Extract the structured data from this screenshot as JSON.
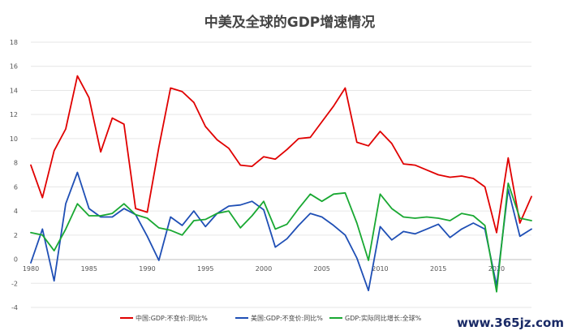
{
  "chart_data": {
    "type": "line",
    "title": "中美及全球的GDP增速情况",
    "xlabel": "",
    "ylabel": "",
    "ylim": [
      -4,
      18
    ],
    "y_ticks": [
      "-4",
      "-2",
      "0",
      "2",
      "4",
      "6",
      "8",
      "10",
      "12",
      "14",
      "16",
      "18"
    ],
    "x_ticks": [
      "1980",
      "1985",
      "1990",
      "1995",
      "2000",
      "2005",
      "2010",
      "2015",
      "2020"
    ],
    "grid": true,
    "legend_position": "bottom",
    "x": [
      1980,
      1981,
      1982,
      1983,
      1984,
      1985,
      1986,
      1987,
      1988,
      1989,
      1990,
      1991,
      1992,
      1993,
      1994,
      1995,
      1996,
      1997,
      1998,
      1999,
      2000,
      2001,
      2002,
      2003,
      2004,
      2005,
      2006,
      2007,
      2008,
      2009,
      2010,
      2011,
      2012,
      2013,
      2014,
      2015,
      2016,
      2017,
      2018,
      2019,
      2020,
      2021,
      2022,
      2023
    ],
    "series": [
      {
        "name": "中国:GDP:不变价:同比%",
        "color": "#e00000",
        "values": [
          7.8,
          5.1,
          9.0,
          10.8,
          15.2,
          13.4,
          8.9,
          11.7,
          11.2,
          4.2,
          3.9,
          9.3,
          14.2,
          13.9,
          13.0,
          11.0,
          9.9,
          9.2,
          7.8,
          7.7,
          8.5,
          8.3,
          9.1,
          10.0,
          10.1,
          11.4,
          12.7,
          14.2,
          9.7,
          9.4,
          10.6,
          9.6,
          7.9,
          7.8,
          7.4,
          7.0,
          6.8,
          6.9,
          6.7,
          6.0,
          2.2,
          8.4,
          3.0,
          5.2
        ]
      },
      {
        "name": "美国:GDP:不变价:同比%",
        "color": "#1f4fb5",
        "values": [
          -0.3,
          2.5,
          -1.8,
          4.6,
          7.2,
          4.2,
          3.5,
          3.5,
          4.2,
          3.7,
          1.9,
          -0.1,
          3.5,
          2.8,
          4.0,
          2.7,
          3.8,
          4.4,
          4.5,
          4.8,
          4.1,
          1.0,
          1.7,
          2.8,
          3.8,
          3.5,
          2.8,
          2.0,
          0.1,
          -2.6,
          2.7,
          1.6,
          2.3,
          2.1,
          2.5,
          2.9,
          1.8,
          2.5,
          3.0,
          2.5,
          -2.2,
          5.8,
          1.9,
          2.5
        ]
      },
      {
        "name": "GDP:实际同比增长:全球%",
        "color": "#19a832",
        "values": [
          2.2,
          2.0,
          0.7,
          2.5,
          4.6,
          3.6,
          3.6,
          3.8,
          4.6,
          3.7,
          3.4,
          2.6,
          2.4,
          2.0,
          3.2,
          3.3,
          3.8,
          4.0,
          2.6,
          3.6,
          4.8,
          2.5,
          2.9,
          4.2,
          5.4,
          4.8,
          5.4,
          5.5,
          3.0,
          -0.1,
          5.4,
          4.2,
          3.5,
          3.4,
          3.5,
          3.4,
          3.2,
          3.8,
          3.6,
          2.8,
          -2.7,
          6.3,
          3.4,
          3.2
        ]
      }
    ]
  },
  "watermark": "www.365jz.com"
}
